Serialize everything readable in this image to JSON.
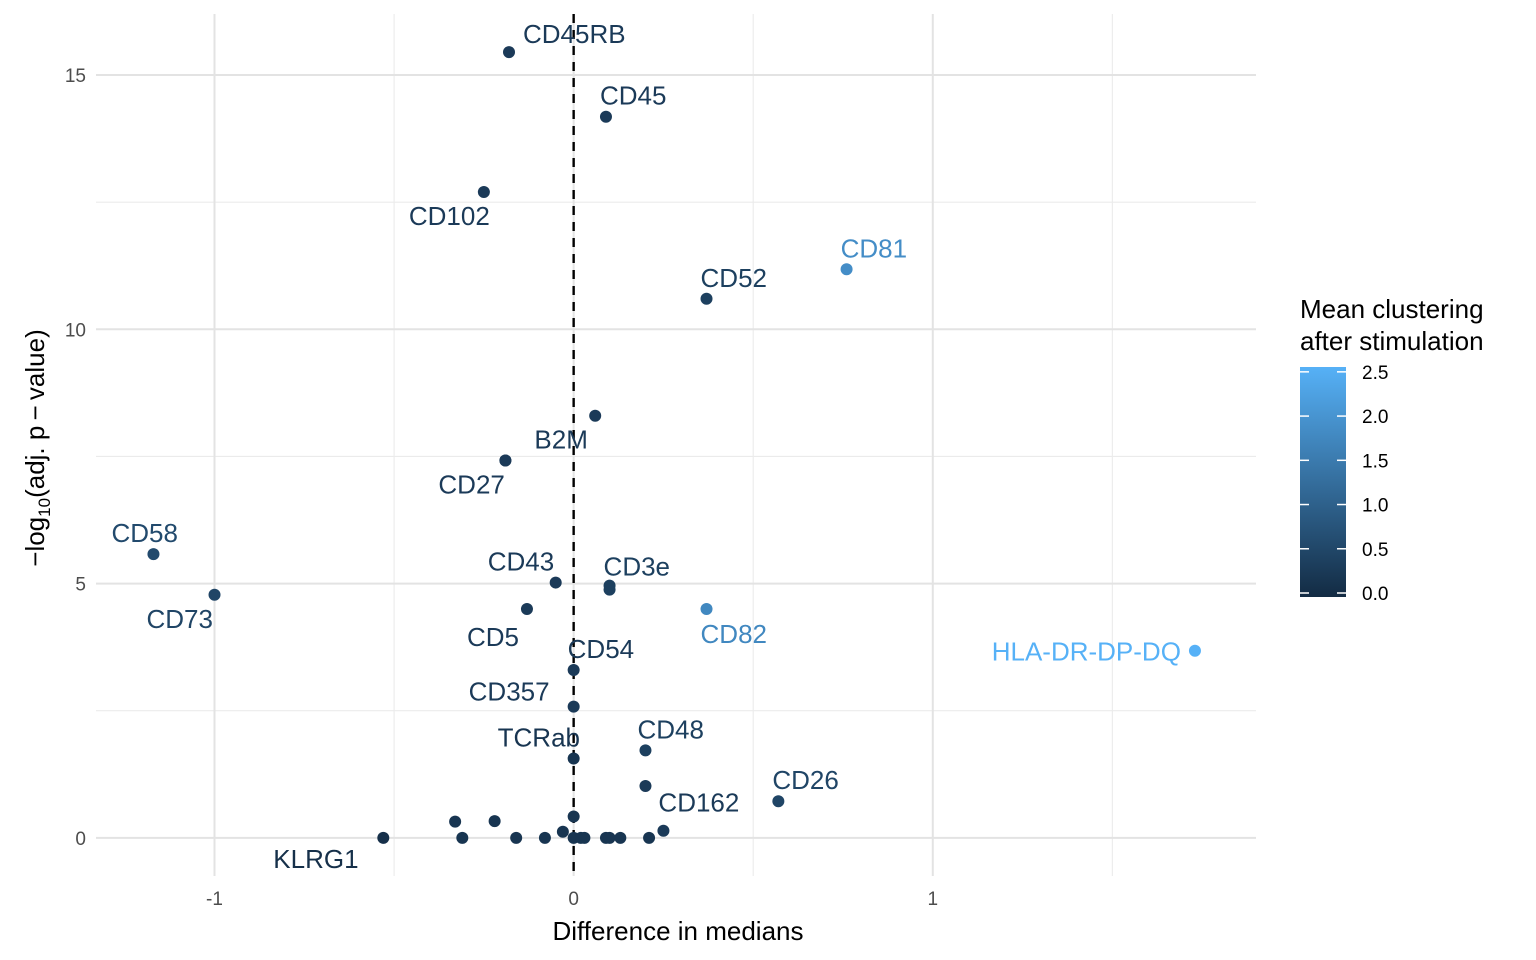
{
  "chart_data": {
    "type": "scatter",
    "xlabel": "Difference in medians",
    "ylabel_prefix": "−log",
    "ylabel_sub": "10",
    "ylabel_suffix": "(adj. p − value)",
    "xlim": [
      -1.33,
      1.9
    ],
    "ylim": [
      -0.75,
      16.2
    ],
    "x_ticks": [
      -1,
      0,
      1
    ],
    "x_tick_labels": [
      "-1",
      "0",
      "1"
    ],
    "y_ticks": [
      0,
      5,
      10,
      15
    ],
    "y_tick_labels": [
      "0",
      "5",
      "10",
      "15"
    ],
    "grid": true,
    "reference_line": {
      "x": 0,
      "style": "dashed"
    },
    "legend": {
      "title": [
        "Mean clustering",
        "after stimulation"
      ],
      "placement": "right",
      "range": [
        0,
        2.6
      ],
      "ticks": [
        0,
        0.5,
        1,
        1.5,
        2,
        2.5
      ],
      "tick_labels": [
        "0.0",
        "0.5",
        "1.0",
        "1.5",
        "2.0",
        "2.5"
      ],
      "color_low": "#132B43",
      "color_high": "#56B1F7"
    },
    "points": [
      {
        "label": "CD45RB",
        "x": -0.18,
        "y": 15.45,
        "c": 0.3
      },
      {
        "label": "CD45",
        "x": 0.09,
        "y": 14.18,
        "c": 0.3
      },
      {
        "label": "CD102",
        "x": -0.25,
        "y": 12.7,
        "c": 0.3
      },
      {
        "label": "CD81",
        "x": 0.76,
        "y": 11.18,
        "c": 1.9
      },
      {
        "label": "CD52",
        "x": 0.37,
        "y": 10.6,
        "c": 0.4
      },
      {
        "label": "",
        "x": 0.06,
        "y": 8.3,
        "c": 0.3
      },
      {
        "label": "B2M",
        "x": -0.19,
        "y": 7.42,
        "c": 0.3
      },
      {
        "label": "CD27",
        "x": -0.19,
        "y": 7.42,
        "c": 0.3
      },
      {
        "label": "CD58",
        "x": -1.17,
        "y": 5.58,
        "c": 0.6
      },
      {
        "label": "CD73",
        "x": -1.0,
        "y": 4.78,
        "c": 0.5
      },
      {
        "label": "CD43",
        "x": -0.05,
        "y": 5.02,
        "c": 0.3
      },
      {
        "label": "CD3e",
        "x": 0.1,
        "y": 4.96,
        "c": 0.4
      },
      {
        "label": "",
        "x": 0.1,
        "y": 4.88,
        "c": 0.4
      },
      {
        "label": "CD5",
        "x": -0.13,
        "y": 4.5,
        "c": 0.3
      },
      {
        "label": "CD82",
        "x": 0.37,
        "y": 4.5,
        "c": 1.8
      },
      {
        "label": "HLA-DR-DP-DQ",
        "x": 1.73,
        "y": 3.68,
        "c": 2.6
      },
      {
        "label": "CD54",
        "x": 0.0,
        "y": 3.3,
        "c": 0.3
      },
      {
        "label": "CD357",
        "x": 0.0,
        "y": 2.58,
        "c": 0.3
      },
      {
        "label": "TCRab",
        "x": 0.0,
        "y": 1.56,
        "c": 0.2
      },
      {
        "label": "CD48",
        "x": 0.2,
        "y": 1.72,
        "c": 0.4
      },
      {
        "label": "",
        "x": 0.2,
        "y": 1.02,
        "c": 0.3
      },
      {
        "label": "CD26",
        "x": 0.57,
        "y": 0.72,
        "c": 0.5
      },
      {
        "label": "CD162",
        "x": 0.25,
        "y": 0.14,
        "c": 0.3
      },
      {
        "label": "KLRG1",
        "x": -0.53,
        "y": 0.0,
        "c": 0.1
      },
      {
        "label": "",
        "x": -0.33,
        "y": 0.32,
        "c": 0.2
      },
      {
        "label": "",
        "x": -0.31,
        "y": 0.0,
        "c": 0.2
      },
      {
        "label": "",
        "x": -0.22,
        "y": 0.33,
        "c": 0.2
      },
      {
        "label": "",
        "x": -0.16,
        "y": 0.0,
        "c": 0.2
      },
      {
        "label": "",
        "x": -0.08,
        "y": 0.0,
        "c": 0.2
      },
      {
        "label": "",
        "x": -0.03,
        "y": 0.12,
        "c": 0.2
      },
      {
        "label": "",
        "x": 0.0,
        "y": 0.42,
        "c": 0.2
      },
      {
        "label": "",
        "x": 0.0,
        "y": 0.0,
        "c": 0.2
      },
      {
        "label": "",
        "x": 0.02,
        "y": 0.0,
        "c": 0.2
      },
      {
        "label": "",
        "x": 0.03,
        "y": 0.0,
        "c": 0.2
      },
      {
        "label": "",
        "x": 0.09,
        "y": 0.0,
        "c": 0.2
      },
      {
        "label": "",
        "x": 0.1,
        "y": 0.0,
        "c": 0.2
      },
      {
        "label": "",
        "x": 0.13,
        "y": 0.0,
        "c": 0.2
      },
      {
        "label": "",
        "x": 0.21,
        "y": 0.0,
        "c": 0.2
      }
    ]
  }
}
